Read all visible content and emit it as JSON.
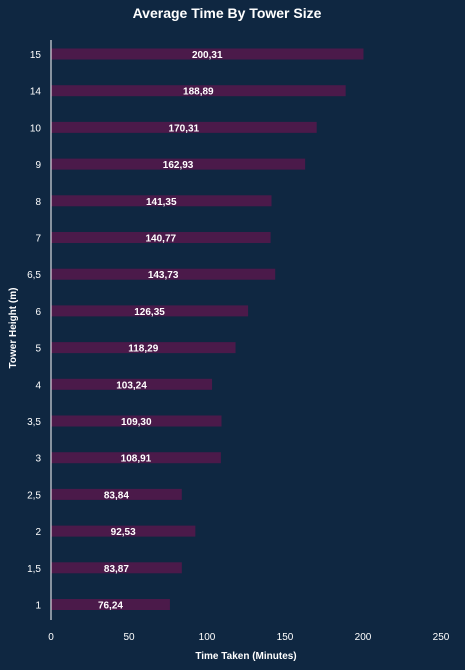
{
  "chart_data": {
    "type": "bar",
    "orientation": "horizontal",
    "title": "Average Time By Tower Size",
    "xlabel": "Time Taken (Minutes)",
    "ylabel": "Tower Height (m)",
    "categories": [
      "15",
      "14",
      "10",
      "9",
      "8",
      "7",
      "6,5",
      "6",
      "5",
      "4",
      "3,5",
      "3",
      "2,5",
      "2",
      "1,5",
      "1"
    ],
    "values": [
      200.31,
      188.89,
      170.31,
      162.93,
      141.35,
      140.77,
      143.73,
      126.35,
      118.29,
      103.24,
      109.3,
      108.91,
      83.84,
      92.53,
      83.87,
      76.24
    ],
    "value_labels": [
      "200,31",
      "188,89",
      "170,31",
      "162,93",
      "141,35",
      "140,77",
      "143,73",
      "126,35",
      "118,29",
      "103,24",
      "109,30",
      "108,91",
      "83,84",
      "92,53",
      "83,87",
      "76,24"
    ],
    "xlim": [
      0,
      250
    ],
    "xticks": [
      "0",
      "50",
      "100",
      "150",
      "200",
      "250"
    ],
    "grid": false,
    "legend": "none",
    "colors": {
      "background": "#0f2741",
      "bar": "#4b1a4a",
      "text": "#ffffff",
      "axis": "#ffffff"
    }
  }
}
